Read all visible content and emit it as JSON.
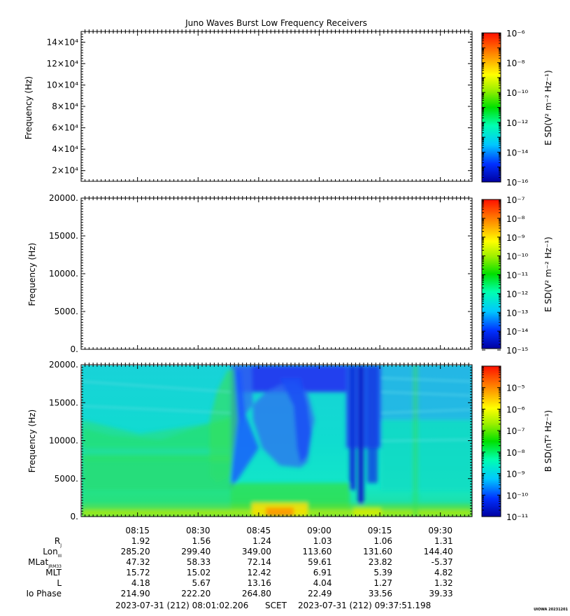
{
  "title": "Juno Waves Burst Low Frequency Receivers",
  "credit": "UIOWA 20231201",
  "footer": {
    "start": "2023-07-31 (212) 08:01:02.206",
    "scet": "SCET",
    "end": "2023-07-31 (212) 09:37:51.198"
  },
  "chart_data": [
    {
      "type": "heatmap",
      "ylabel": "Frequency (Hz)",
      "y_tick_labels": [
        "2×10⁴",
        "4×10⁴",
        "6×10⁴",
        "8×10⁴",
        "10×10⁴",
        "12×10⁴",
        "14×10⁴"
      ],
      "y_ticks": [
        20000,
        40000,
        60000,
        80000,
        100000,
        120000,
        140000
      ],
      "ylim": [
        10000,
        150000
      ],
      "data": "empty",
      "colorbar": {
        "label": "E SD(V² m⁻² Hz⁻¹)",
        "scale": "log",
        "range": [
          1e-16,
          1e-06
        ],
        "tick_labels": [
          "10⁻⁶",
          "10⁻⁸",
          "10⁻¹⁰",
          "10⁻¹²",
          "10⁻¹⁴",
          "10⁻¹⁶"
        ]
      }
    },
    {
      "type": "heatmap",
      "ylabel": "Frequency (Hz)",
      "y_tick_labels": [
        "20000.",
        "15000.",
        "10000.",
        "5000.",
        "0."
      ],
      "y_ticks": [
        20000,
        15000,
        10000,
        5000,
        0
      ],
      "ylim": [
        0,
        20000
      ],
      "data": "empty",
      "colorbar": {
        "label": "E SD(V² m⁻² Hz⁻¹)",
        "scale": "log",
        "range": [
          1e-15,
          1e-07
        ],
        "tick_labels": [
          "10⁻⁷",
          "10⁻⁸",
          "10⁻⁹",
          "10⁻¹⁰",
          "10⁻¹¹",
          "10⁻¹²",
          "10⁻¹³",
          "10⁻¹⁴",
          "10⁻¹⁵"
        ]
      }
    },
    {
      "type": "heatmap",
      "ylabel": "Frequency (Hz)",
      "y_tick_labels": [
        "20000.",
        "15000.",
        "10000.",
        "5000.",
        "0."
      ],
      "y_ticks": [
        20000,
        15000,
        10000,
        5000,
        0
      ],
      "ylim": [
        0,
        20000
      ],
      "data": "spectrogram",
      "colorbar": {
        "label": "B SD(nT² Hz⁻¹)",
        "scale": "log",
        "range": [
          1e-11,
          0.0001
        ],
        "tick_labels": [
          "10⁻⁵",
          "10⁻⁶",
          "10⁻⁷",
          "10⁻⁸",
          "10⁻⁹",
          "10⁻¹⁰",
          "10⁻¹¹"
        ]
      }
    }
  ],
  "time_axis": [
    "08:15",
    "08:30",
    "08:45",
    "09:00",
    "09:15",
    "09:30"
  ],
  "ephemeris": [
    {
      "label": "R",
      "sub": "J",
      "values": [
        "1.92",
        "1.56",
        "1.24",
        "1.03",
        "1.06",
        "1.31"
      ]
    },
    {
      "label": "Lon",
      "sub": "III",
      "values": [
        "285.20",
        "299.40",
        "349.00",
        "113.60",
        "131.60",
        "144.40"
      ]
    },
    {
      "label": "MLat",
      "sub": "JRM33",
      "values": [
        "47.32",
        "58.33",
        "72.14",
        "59.61",
        "23.82",
        "-5.37"
      ]
    },
    {
      "label": "MLT",
      "sub": "",
      "values": [
        "15.72",
        "15.02",
        "12.42",
        "6.91",
        "5.39",
        "4.82"
      ]
    },
    {
      "label": "L",
      "sub": "",
      "values": [
        "4.18",
        "5.67",
        "13.16",
        "4.04",
        "1.27",
        "1.32"
      ]
    },
    {
      "label": "Io Phase",
      "sub": "",
      "values": [
        "214.90",
        "222.20",
        "264.80",
        "22.49",
        "33.56",
        "39.33"
      ]
    }
  ]
}
